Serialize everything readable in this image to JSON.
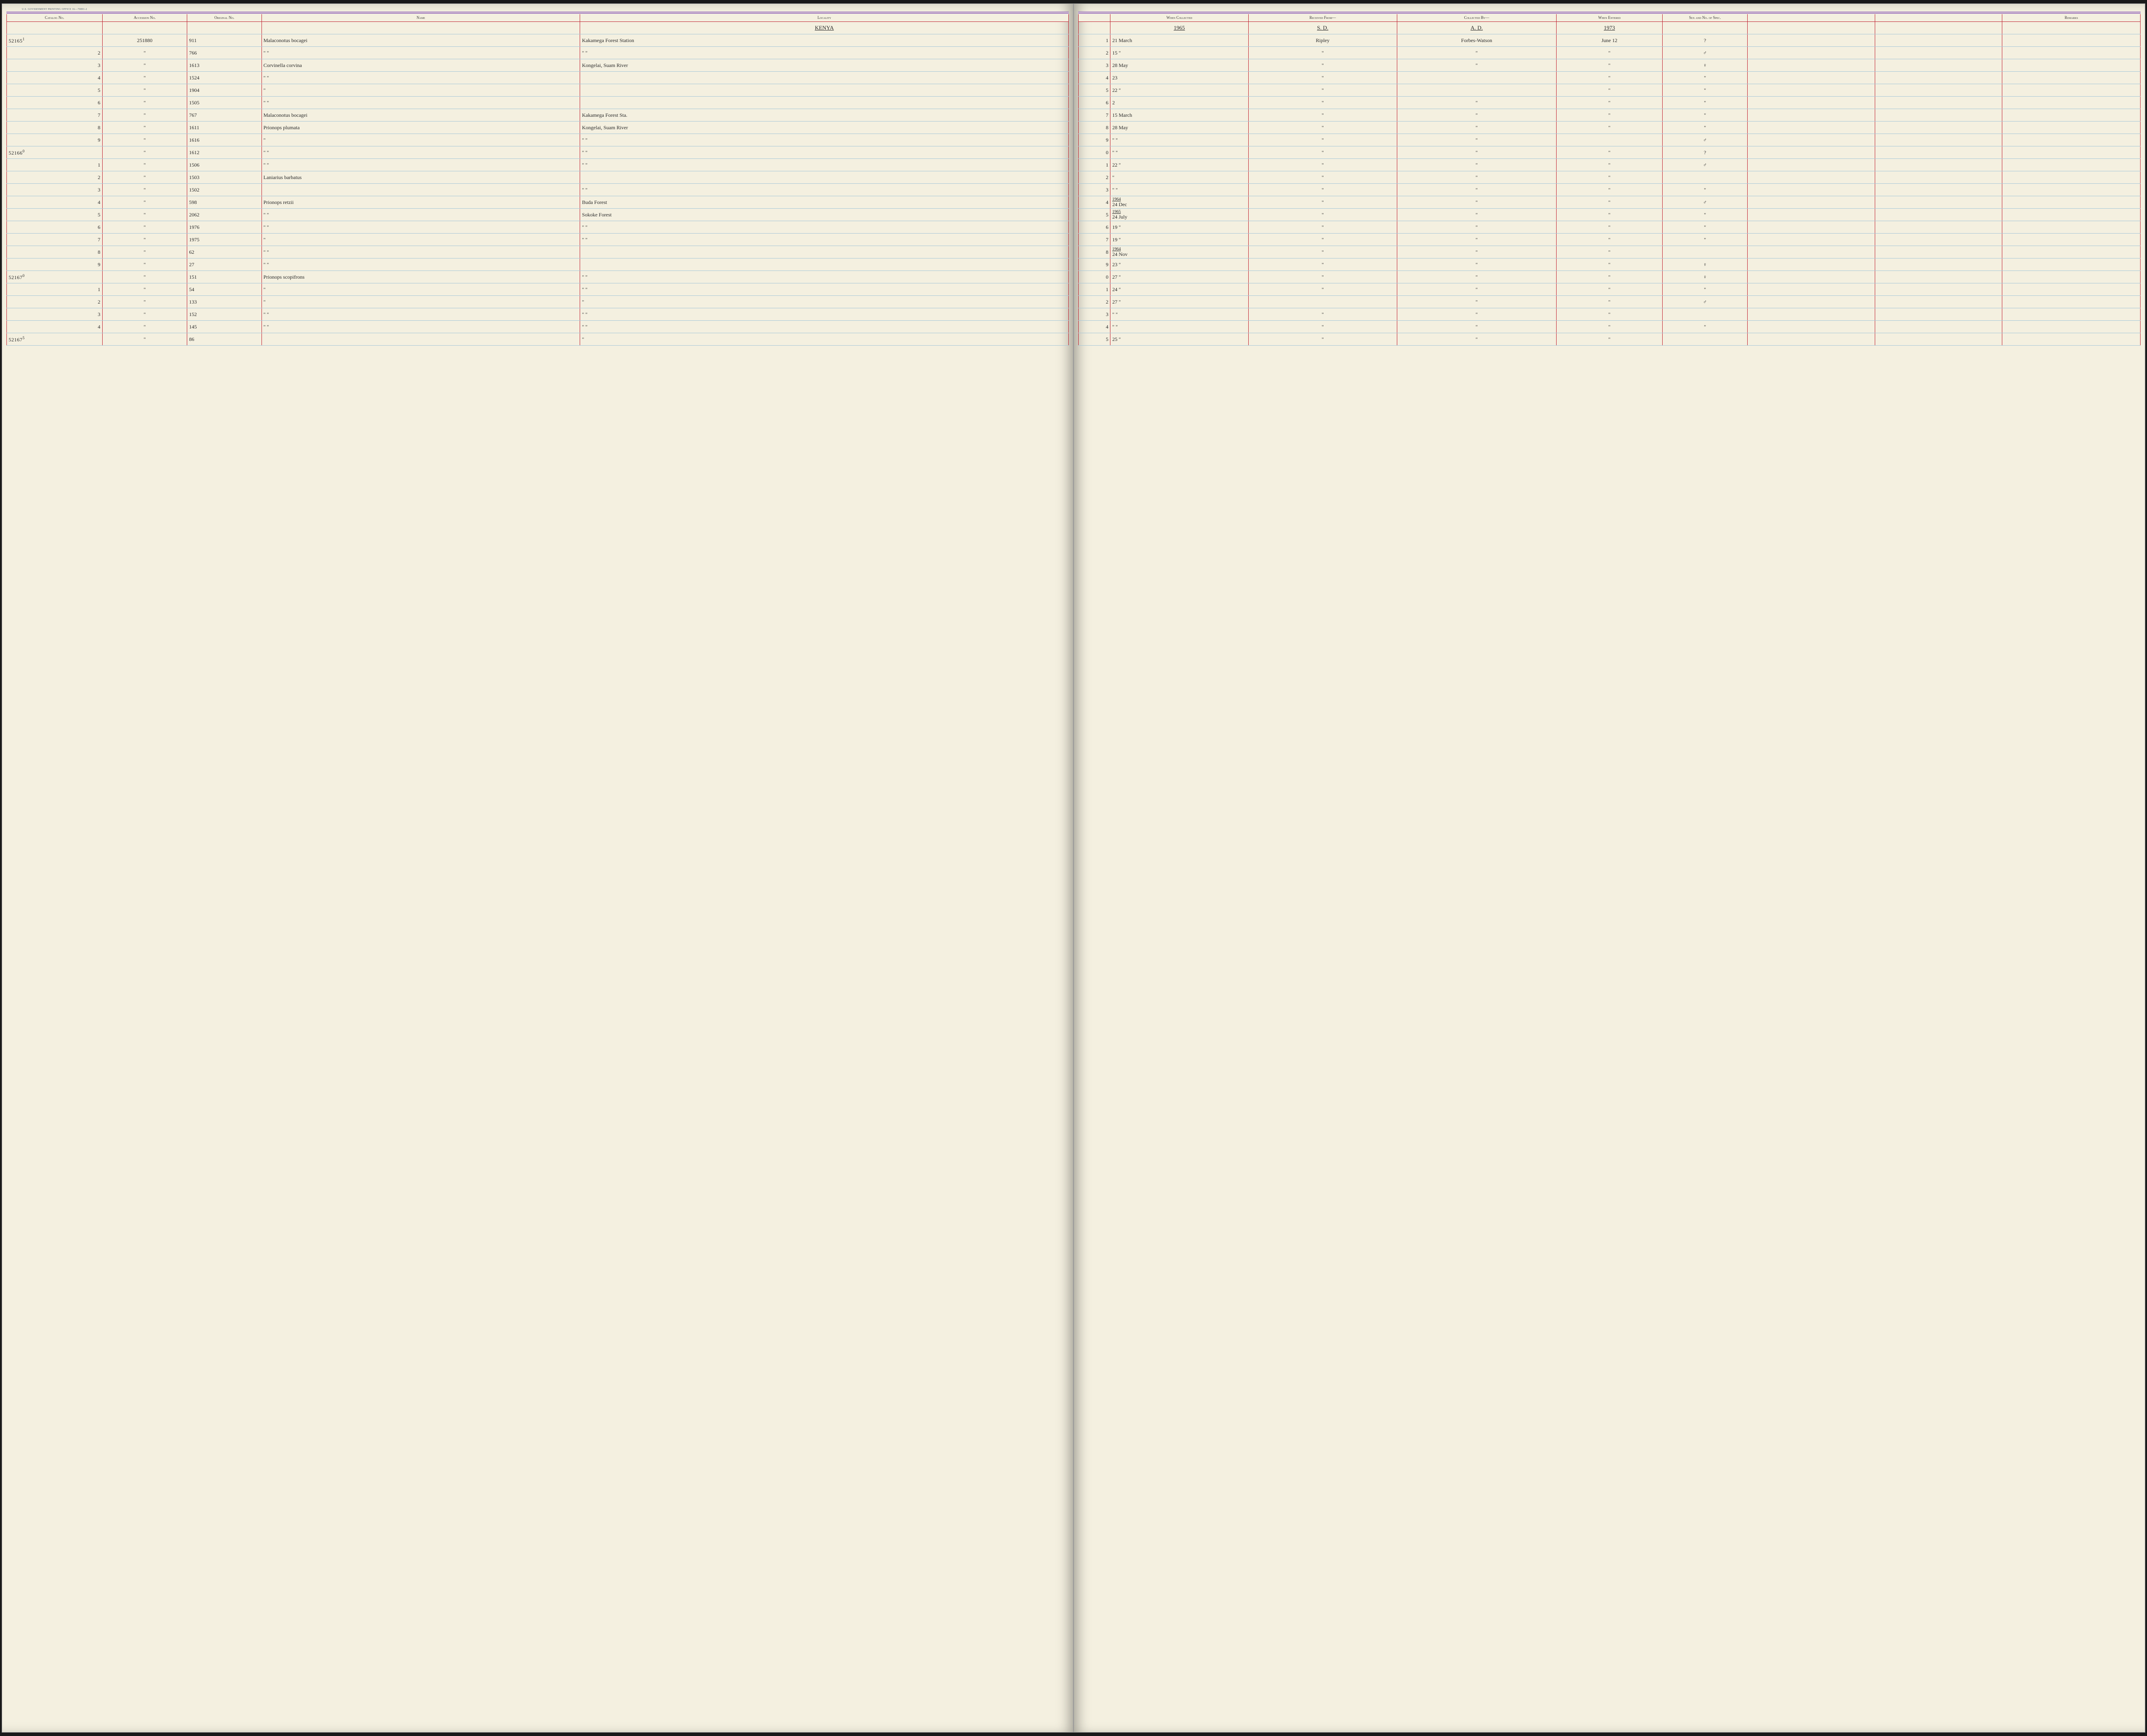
{
  "gov_print": "U.S. GOVERNMENT PRINTING OFFICE   16—70891-2",
  "headers": {
    "catalog": "Catalog No.",
    "accession": "Accession No.",
    "original": "Original No.",
    "name": "Name",
    "locality": "Locality",
    "when_collected": "When Collected",
    "received_from": "Received From—",
    "collected_by": "Collected By—",
    "when_entered": "When Entered",
    "sex_spec": "Sex and No. of Spec.",
    "remarks": "Remarks"
  },
  "context_row": {
    "name": "",
    "locality": "KENYA",
    "when_collected": "1965",
    "received_from": "S. D.",
    "collected_by": "A. D.",
    "when_entered": "1973",
    "sex": ""
  },
  "rows": [
    {
      "idx": "1",
      "catalog_big": "52165",
      "catalog_sup": "1",
      "accession": "251880",
      "original": "911",
      "name": "Malaconotus bocagei",
      "locality": "Kakamega Forest Station",
      "when": "21 March",
      "recv": "Ripley",
      "coll": "Forbes-Watson",
      "ent": "June 12",
      "sex": "?"
    },
    {
      "idx": "2",
      "catalog": "2",
      "accession": "\"",
      "original": "766",
      "name": "\"          \"",
      "locality": "\"          \"",
      "when": "15  \"",
      "recv": "\"",
      "coll": "\"",
      "ent": "\"",
      "sex": "♂"
    },
    {
      "idx": "3",
      "catalog": "3",
      "accession": "\"",
      "original": "1613",
      "name": "Corvinella corvina",
      "locality": "Kongelai, Suam River",
      "when": "28 May",
      "recv": "\"",
      "coll": "\"",
      "ent": "\"",
      "sex": "♀"
    },
    {
      "idx": "4",
      "catalog": "4",
      "accession": "\"",
      "original": "1524",
      "name": "\"       \"",
      "locality": "",
      "when": "23",
      "recv": "\"",
      "coll": "",
      "ent": "\"",
      "sex": "\""
    },
    {
      "idx": "5",
      "catalog": "5",
      "accession": "\"",
      "original": "1904",
      "name": "\"",
      "locality": "",
      "when": "22  \"",
      "recv": "\"",
      "coll": "",
      "ent": "\"",
      "sex": "\""
    },
    {
      "idx": "6",
      "catalog": "6",
      "accession": "\"",
      "original": "1505",
      "name": "\"    \"",
      "locality": "",
      "when": "2",
      "recv": "\"",
      "coll": "\"",
      "ent": "\"",
      "sex": "\""
    },
    {
      "idx": "7",
      "catalog": "7",
      "accession": "\"",
      "original": "767",
      "name": "Malaconotus bocagei",
      "locality": "Kakamega Forest Sta.",
      "when": "15 March",
      "recv": "\"",
      "coll": "\"",
      "ent": "\"",
      "sex": "\""
    },
    {
      "idx": "8",
      "catalog": "8",
      "accession": "\"",
      "original": "1611",
      "name": "Prionops plumata",
      "locality": "Kongelai, Suam River",
      "when": "28 May",
      "recv": "\"",
      "coll": "\"",
      "ent": "\"",
      "sex": "\""
    },
    {
      "idx": "9",
      "catalog": "9",
      "accession": "\"",
      "original": "1616",
      "name": "\"",
      "locality": "\"     \"",
      "when": "\"    \"",
      "recv": "\"",
      "coll": "\"",
      "ent": "",
      "sex": "♂"
    },
    {
      "idx": "0",
      "catalog_big": "52166",
      "catalog_sup": "0",
      "accession": "\"",
      "original": "1612",
      "name": "\"   \"",
      "locality": "\"     \"",
      "when": "\"   \"",
      "recv": "\"",
      "coll": "\"",
      "ent": "\"",
      "sex": "?"
    },
    {
      "idx": "1",
      "catalog": "1",
      "accession": "\"",
      "original": "1506",
      "name": "\"   \"",
      "locality": "\"     \"",
      "when": "22  \"",
      "recv": "\"",
      "coll": "\"",
      "ent": "\"",
      "sex": "♂"
    },
    {
      "idx": "2",
      "catalog": "2",
      "accession": "\"",
      "original": "1503",
      "name": "Laniarius barbatus",
      "locality": "",
      "when": "\"",
      "recv": "\"",
      "coll": "\"",
      "ent": "\"",
      "sex": ""
    },
    {
      "idx": "3",
      "catalog": "3",
      "accession": "\"",
      "original": "1502",
      "name": "",
      "locality": "\"     \"",
      "when": "\"    \"",
      "recv": "\"",
      "coll": "\"",
      "ent": "\"",
      "sex": "\""
    },
    {
      "idx": "4",
      "catalog": "4",
      "accession": "\"",
      "original": "598",
      "name": "Prionops retzii",
      "locality": "Buda Forest",
      "when_year": "1964",
      "when": "24 Dec",
      "recv": "\"",
      "coll": "\"",
      "ent": "\"",
      "sex": "♂"
    },
    {
      "idx": "5",
      "catalog": "5",
      "accession": "\"",
      "original": "2062",
      "name": "\"     \"",
      "locality": "Sokoke Forest",
      "when_year": "1965",
      "when": "24 July",
      "recv": "\"",
      "coll": "\"",
      "ent": "\"",
      "sex": "\""
    },
    {
      "idx": "6",
      "catalog": "6",
      "accession": "\"",
      "original": "1976",
      "name": "\"   \"",
      "locality": "\"     \"",
      "when": "19  \"",
      "recv": "\"",
      "coll": "\"",
      "ent": "\"",
      "sex": "\""
    },
    {
      "idx": "7",
      "catalog": "7",
      "accession": "\"",
      "original": "1975",
      "name": "\"",
      "locality": "\"     \"",
      "when": "19  \"",
      "recv": "\"",
      "coll": "\"",
      "ent": "\"",
      "sex": "\""
    },
    {
      "idx": "8",
      "catalog": "8",
      "accession": "\"",
      "original": "62",
      "name": "\"   \"",
      "locality": "",
      "when_year": "1964",
      "when": "24 Nov",
      "recv": "\"",
      "coll": "\"",
      "ent": "\"",
      "sex": ""
    },
    {
      "idx": "9",
      "catalog": "9",
      "accession": "\"",
      "original": "27",
      "name": "\"   \"",
      "locality": "",
      "when": "23  \"",
      "recv": "\"",
      "coll": "\"",
      "ent": "\"",
      "sex": "♀"
    },
    {
      "idx": "0",
      "catalog_big": "52167",
      "catalog_sup": "0",
      "accession": "\"",
      "original": "151",
      "name": "Prionops scopifrons",
      "locality": "\"     \"",
      "when": "27  \"",
      "recv": "\"",
      "coll": "\"",
      "ent": "\"",
      "sex": "♀"
    },
    {
      "idx": "1",
      "catalog": "1",
      "accession": "\"",
      "original": "54",
      "name": "\"",
      "locality": "\"     \"",
      "when": "24  \"",
      "recv": "\"",
      "coll": "\"",
      "ent": "\"",
      "sex": "\""
    },
    {
      "idx": "2",
      "catalog": "2",
      "accession": "\"",
      "original": "133",
      "name": "\"",
      "locality": "\"",
      "when": "27  \"",
      "recv": "",
      "coll": "\"",
      "ent": "\"",
      "sex": "♂"
    },
    {
      "idx": "3",
      "catalog": "3",
      "accession": "\"",
      "original": "152",
      "name": "\"    \"",
      "locality": "\"     \"",
      "when": "\"    \"",
      "recv": "\"",
      "coll": "\"",
      "ent": "\"",
      "sex": ""
    },
    {
      "idx": "4",
      "catalog": "4",
      "accession": "\"",
      "original": "145",
      "name": "\"    \"",
      "locality": "\"     \"",
      "when": "\"    \"",
      "recv": "\"",
      "coll": "\"",
      "ent": "\"",
      "sex": "\""
    },
    {
      "idx": "5",
      "catalog_big": "52167",
      "catalog_sup": "5",
      "accession": "\"",
      "original": "86",
      "name": "",
      "locality": "\"",
      "when": "25  \"",
      "recv": "\"",
      "coll": "\"",
      "ent": "\"",
      "sex": ""
    }
  ]
}
